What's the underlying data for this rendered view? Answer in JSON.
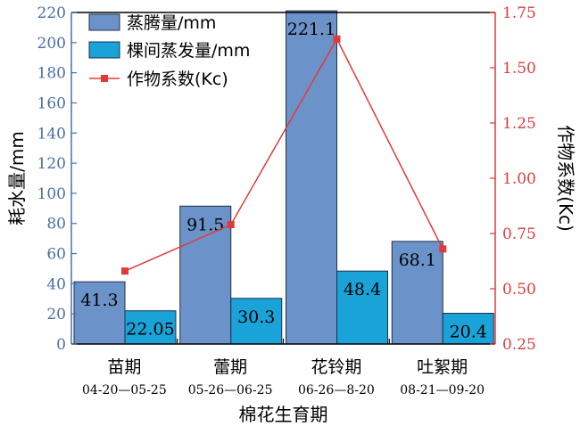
{
  "chart_data": {
    "type": "bar",
    "categories": [
      "苗期",
      "蕾期",
      "花铃期",
      "吐絮期"
    ],
    "dates": [
      "04-20—05-25",
      "05-26—06-25",
      "06-26—8-20",
      "08-21—09-20"
    ],
    "xlabel": "棉花生育期",
    "ylabel_left": "耗水量/mm",
    "ylabel_right": "作物系数(Kc)",
    "ylim_left": [
      0,
      220
    ],
    "yticks_left": [
      0,
      20,
      40,
      60,
      80,
      100,
      120,
      140,
      160,
      180,
      200,
      220
    ],
    "ylim_right": [
      0.25,
      1.75
    ],
    "yticks_right": [
      "0.25",
      "0.50",
      "0.75",
      "1.00",
      "1.25",
      "1.50",
      "1.75"
    ],
    "legend_position": "top-left",
    "series": [
      {
        "name": "蒸腾量/mm",
        "type": "bar",
        "axis": "left",
        "color": "#6b93c9",
        "values": [
          41.3,
          91.5,
          221.1,
          68.1
        ],
        "labels": [
          "41.3",
          "91.5",
          "221.1",
          "68.1"
        ]
      },
      {
        "name": "棵间蒸发量/mm",
        "type": "bar",
        "axis": "left",
        "color": "#1aa3d8",
        "values": [
          22.05,
          30.3,
          48.4,
          20.4
        ],
        "labels": [
          "22.05",
          "30.3",
          "48.4",
          "20.4"
        ]
      },
      {
        "name": "作物系数(Kc)",
        "type": "line",
        "axis": "right",
        "color": "#e03a3a",
        "values": [
          0.58,
          0.79,
          1.63,
          0.68
        ]
      }
    ]
  }
}
